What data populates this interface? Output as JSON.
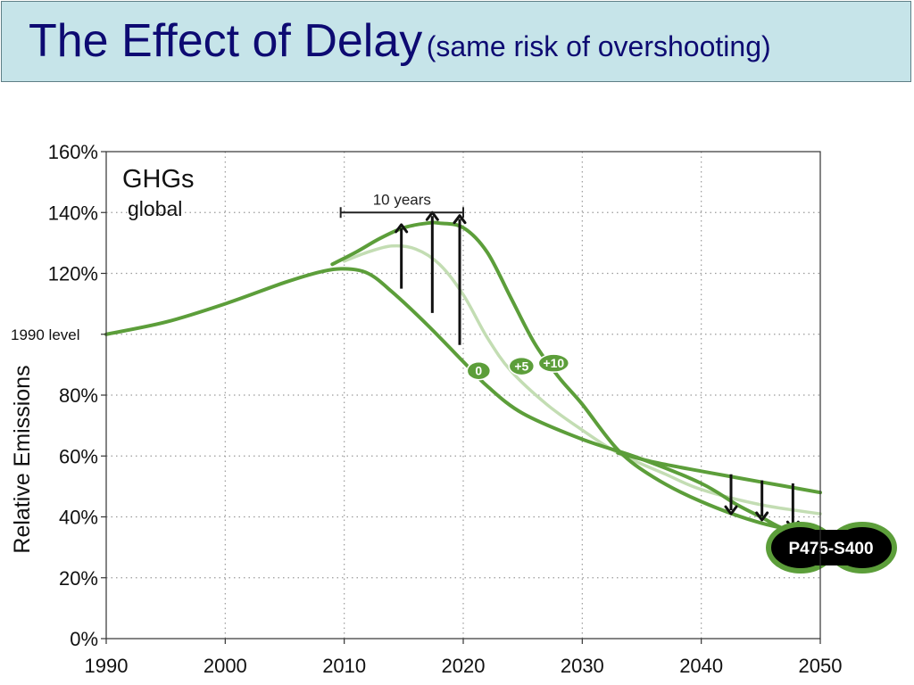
{
  "slide": {
    "title": "The Effect of Delay",
    "subtitle": "(same risk of overshooting)"
  },
  "chart_data": {
    "type": "line",
    "xlim": [
      1990,
      2050
    ],
    "ylim": [
      0,
      160
    ],
    "xticks": [
      1990,
      2000,
      2010,
      2020,
      2030,
      2040,
      2050
    ],
    "xtick_labels": [
      "1990",
      "2000",
      "2010",
      "2020",
      "2030",
      "2040",
      "2050"
    ],
    "yticks": [
      0,
      20,
      40,
      60,
      80,
      120,
      140,
      160
    ],
    "ytick_labels": [
      "0%",
      "20%",
      "40%",
      "60%",
      "80%",
      "120%",
      "140%",
      "160%"
    ],
    "y_level_label": {
      "y": 100,
      "text": "1990 level"
    },
    "ylabel": "Relative Emissions",
    "grid": true,
    "panel_title": "GHGs",
    "panel_subtitle": "global",
    "series": [
      {
        "label": "0",
        "color": "#5c9e3a",
        "points": [
          [
            1990,
            100
          ],
          [
            1995,
            104
          ],
          [
            2000,
            110
          ],
          [
            2005,
            117
          ],
          [
            2008,
            120.5
          ],
          [
            2010,
            121.5
          ],
          [
            2012,
            120
          ],
          [
            2014,
            114
          ],
          [
            2017,
            103
          ],
          [
            2020,
            91
          ],
          [
            2022,
            83
          ],
          [
            2025,
            74
          ],
          [
            2030,
            65.5
          ],
          [
            2035,
            59
          ],
          [
            2040,
            51
          ],
          [
            2043,
            44
          ],
          [
            2045,
            40
          ],
          [
            2047,
            36
          ],
          [
            2050,
            33
          ]
        ]
      },
      {
        "label": "+5",
        "color": "#c3ddb3",
        "points": [
          [
            2010,
            124
          ],
          [
            2012,
            127
          ],
          [
            2014,
            129
          ],
          [
            2016,
            128
          ],
          [
            2018,
            123
          ],
          [
            2020,
            113
          ],
          [
            2022,
            99
          ],
          [
            2024,
            88
          ],
          [
            2027,
            77
          ],
          [
            2030,
            68.5
          ],
          [
            2033,
            61
          ],
          [
            2037,
            54
          ],
          [
            2040,
            49
          ],
          [
            2045,
            44
          ],
          [
            2050,
            41
          ]
        ]
      },
      {
        "label": "+10",
        "color": "#5c9e3a",
        "points": [
          [
            2009,
            123
          ],
          [
            2011,
            127
          ],
          [
            2013,
            131.5
          ],
          [
            2015,
            135
          ],
          [
            2017,
            136.5
          ],
          [
            2018,
            136.5
          ],
          [
            2020,
            135
          ],
          [
            2022,
            127
          ],
          [
            2024,
            112
          ],
          [
            2026,
            97
          ],
          [
            2028,
            86
          ],
          [
            2030,
            77
          ],
          [
            2033,
            62
          ],
          [
            2036,
            53
          ],
          [
            2040,
            45
          ],
          [
            2045,
            38
          ],
          [
            2050,
            34
          ]
        ]
      },
      {
        "label": "upper",
        "color": "#5c9e3a",
        "points": [
          [
            2033,
            61
          ],
          [
            2036,
            58
          ],
          [
            2040,
            55
          ],
          [
            2045,
            51.5
          ],
          [
            2050,
            48
          ]
        ]
      }
    ],
    "series_labels": [
      {
        "text": "0",
        "x": 2021.3,
        "y": 88
      },
      {
        "text": "+5",
        "x": 2024.9,
        "y": 89.5
      },
      {
        "text": "+10",
        "x": 2027.6,
        "y": 90.5
      }
    ],
    "bracket": {
      "x1": 2009.7,
      "x2": 2020,
      "y": 140,
      "text": "10 years"
    },
    "up_arrows": [
      {
        "x": 2014.8,
        "y0": 115,
        "y1": 136
      },
      {
        "x": 2017.4,
        "y0": 107,
        "y1": 140
      },
      {
        "x": 2019.7,
        "y0": 96.5,
        "y1": 139
      }
    ],
    "down_arrows": [
      {
        "x": 2042.5,
        "y0": 54,
        "y1": 41
      },
      {
        "x": 2045.1,
        "y0": 52,
        "y1": 39
      },
      {
        "x": 2047.7,
        "y0": 51,
        "y1": 36
      }
    ],
    "scenario_badge": {
      "text": "P475-S400"
    }
  }
}
